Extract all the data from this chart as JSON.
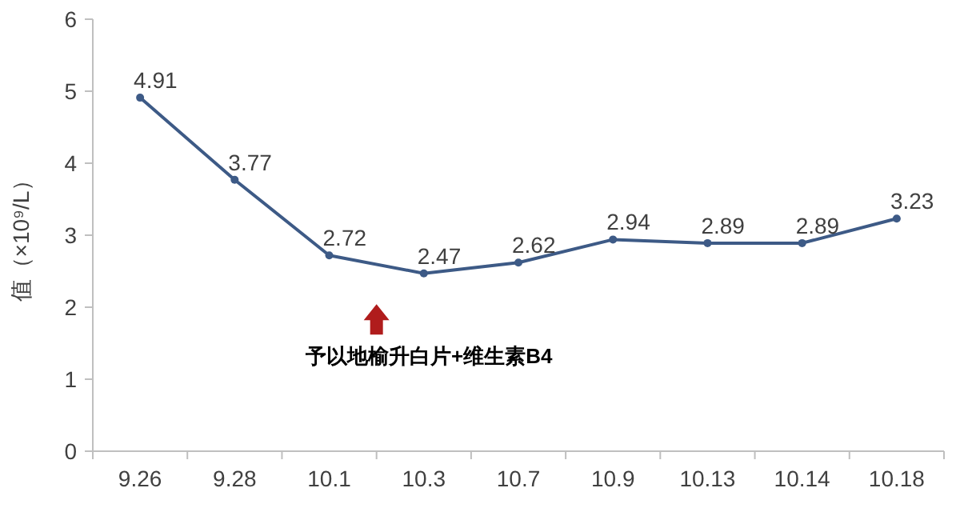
{
  "chart_data": {
    "type": "line",
    "ylabel": "值（×10⁹/L）",
    "categories": [
      "9.26",
      "9.28",
      "10.1",
      "10.3",
      "10.7",
      "10.9",
      "10.13",
      "10.14",
      "10.18"
    ],
    "series": [
      {
        "color": "#3d5a86",
        "values": [
          4.91,
          3.77,
          2.72,
          2.47,
          2.62,
          2.94,
          2.89,
          2.89,
          3.23
        ]
      }
    ],
    "ylim": [
      0,
      6
    ],
    "yticks": [
      0,
      1,
      2,
      3,
      4,
      5,
      6
    ],
    "data_labels": true,
    "marker": "circle",
    "line_style": "solid",
    "grid": false,
    "annotations": [
      "予以地榆升白片+维生素B4"
    ]
  }
}
